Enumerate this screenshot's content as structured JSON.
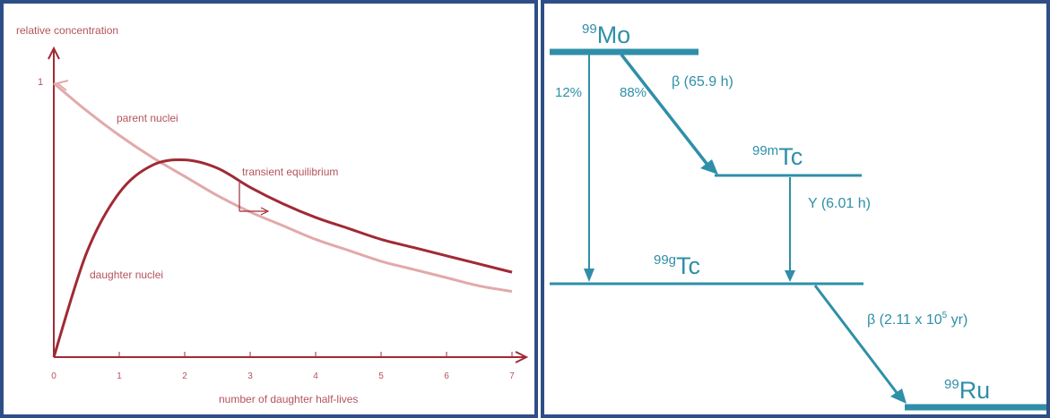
{
  "left_chart": {
    "ylabel": "relative concentration",
    "xlabel": "number of daughter half-lives",
    "y_tick_one": "1",
    "x_ticks": [
      "0",
      "1",
      "2",
      "3",
      "4",
      "5",
      "6",
      "7"
    ],
    "annotations": {
      "parent": "parent nuclei",
      "daughter": "daughter nuclei",
      "equilibrium": "transient equilibrium"
    },
    "colors": {
      "parent": "#e2a9aa",
      "daughter": "#a02a35",
      "axis": "#a02a35",
      "text": "#b5535b"
    }
  },
  "chart_data": {
    "type": "line",
    "xlabel": "number of daughter half-lives",
    "ylabel": "relative concentration",
    "xlim": [
      0,
      7
    ],
    "series": [
      {
        "name": "parent nuclei",
        "x": [
          0,
          0.5,
          1,
          1.5,
          2,
          2.5,
          3,
          3.5,
          4,
          4.5,
          5,
          5.5,
          6,
          6.5,
          7
        ],
        "y": [
          1.0,
          0.9,
          0.81,
          0.73,
          0.66,
          0.59,
          0.53,
          0.48,
          0.43,
          0.39,
          0.35,
          0.32,
          0.29,
          0.26,
          0.24
        ]
      },
      {
        "name": "daughter nuclei",
        "x": [
          0,
          0.5,
          1,
          1.5,
          2,
          2.5,
          3,
          3.5,
          4,
          4.5,
          5,
          5.5,
          6,
          6.5,
          7
        ],
        "y": [
          0.0,
          0.38,
          0.6,
          0.7,
          0.72,
          0.69,
          0.62,
          0.56,
          0.51,
          0.47,
          0.43,
          0.4,
          0.37,
          0.34,
          0.31
        ]
      }
    ]
  },
  "decay_scheme": {
    "color": "#2f8fa8",
    "levels": {
      "mo": {
        "mass": "99",
        "symbol": "Mo"
      },
      "tcm": {
        "mass": "99m",
        "symbol": "Tc"
      },
      "tcg": {
        "mass": "99g",
        "symbol": "Tc"
      },
      "ru": {
        "mass": "99",
        "symbol": "Ru"
      }
    },
    "branch_12": "12%",
    "branch_88": "88%",
    "beta_mo": "β (65.9 h)",
    "gamma_tc": "Y (6.01 h)",
    "beta_tc_prefix": "β (2.11 x 10",
    "beta_tc_exp": "5",
    "beta_tc_suffix": " yr)"
  }
}
